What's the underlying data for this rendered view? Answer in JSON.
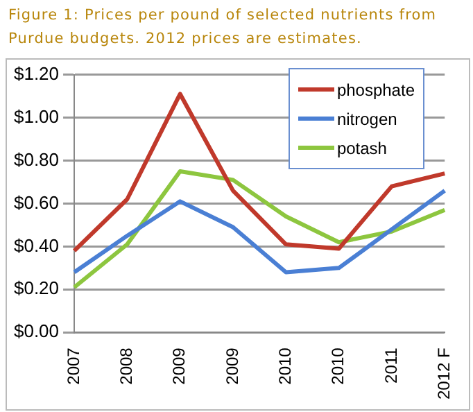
{
  "chart_data": {
    "type": "line",
    "title": "Figure 1: Prices per pound of selected nutrients from Purdue budgets. 2012 prices are estimates.",
    "categories": [
      "2007",
      "2008",
      "2009",
      "2009",
      "2010",
      "2010",
      "2011",
      "2012 F"
    ],
    "series": [
      {
        "name": "phosphate",
        "color": "#c0392b",
        "values": [
          0.38,
          0.62,
          1.11,
          0.66,
          0.41,
          0.39,
          0.68,
          0.74
        ]
      },
      {
        "name": "nitrogen",
        "color": "#4a7fd4",
        "values": [
          0.28,
          0.45,
          0.61,
          0.49,
          0.28,
          0.3,
          0.48,
          0.66
        ]
      },
      {
        "name": "potash",
        "color": "#8dc63f",
        "values": [
          0.21,
          0.41,
          0.75,
          0.71,
          0.54,
          0.42,
          0.47,
          0.57
        ]
      }
    ],
    "ylim": [
      0,
      1.2
    ],
    "yticks": [
      {
        "value": 0,
        "label": "$0.00"
      },
      {
        "value": 0.2,
        "label": "$0.20"
      },
      {
        "value": 0.4,
        "label": "$0.40"
      },
      {
        "value": 0.6,
        "label": "$0.60"
      },
      {
        "value": 0.8,
        "label": "$0.80"
      },
      {
        "value": 1,
        "label": "$1.00"
      },
      {
        "value": 1.2,
        "label": "$1.20"
      }
    ],
    "grid": "y",
    "legend": "top right",
    "marker": "none",
    "line_style": "solid"
  }
}
